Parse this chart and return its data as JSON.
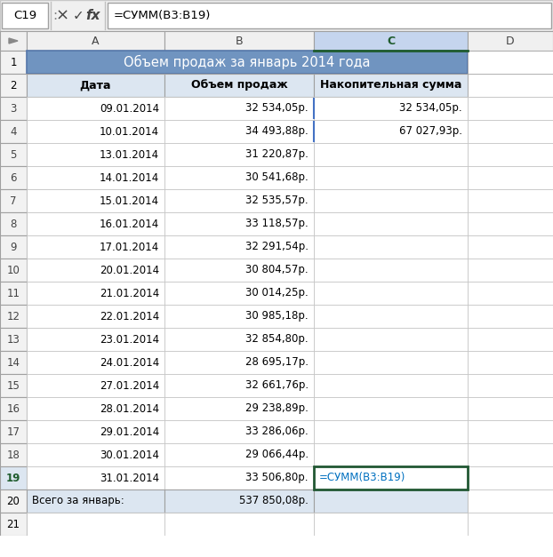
{
  "title_bar_text": "=СУММ(В3:В19)",
  "cell_ref": "C19",
  "title_text": "Объем продаж за январь 2014 года",
  "headers": [
    "Дата",
    "Объем продаж",
    "Накопительная сумма"
  ],
  "dates": [
    "09.01.2014",
    "10.01.2014",
    "13.01.2014",
    "14.01.2014",
    "15.01.2014",
    "16.01.2014",
    "17.01.2014",
    "20.01.2014",
    "21.01.2014",
    "22.01.2014",
    "23.01.2014",
    "24.01.2014",
    "27.01.2014",
    "28.01.2014",
    "29.01.2014",
    "30.01.2014",
    "31.01.2014"
  ],
  "sales": [
    "32 534,05р.",
    "34 493,88р.",
    "31 220,87р.",
    "30 541,68р.",
    "32 535,57р.",
    "33 118,57р.",
    "32 291,54р.",
    "30 804,57р.",
    "30 014,25р.",
    "30 985,18р.",
    "32 854,80р.",
    "28 695,17р.",
    "32 661,76р.",
    "29 238,89р.",
    "33 286,06р.",
    "29 066,44р.",
    "33 506,80р."
  ],
  "cumulative": [
    "32 534,05р.",
    "67 027,93р.",
    "",
    "",
    "",
    "",
    "",
    "",
    "",
    "",
    "",
    "",
    "",
    "",
    "",
    "",
    ""
  ],
  "formula_cell": "=СУММ(В3:В19)",
  "total_label": "Всего за январь:",
  "total_value": "537 850,08р.",
  "header_bg": "#7094C0",
  "header_text": "#ffffff",
  "subheader_bg": "#dce6f1",
  "total_bg": "#dce6f1",
  "selected_col_bg": "#d0dff5",
  "selected_col_header_bg": "#c5d5ee",
  "row_num_bg": "#f2f2f2",
  "row_num_selected_bg": "#dce6f1",
  "toolbar_bg": "#f0f0f0",
  "grid_color": "#c0c0c0",
  "grid_dark": "#808080",
  "formula_border": "#215732",
  "formula_text_color": "#0070C0",
  "col_c_header_border": "#1f5c2e"
}
